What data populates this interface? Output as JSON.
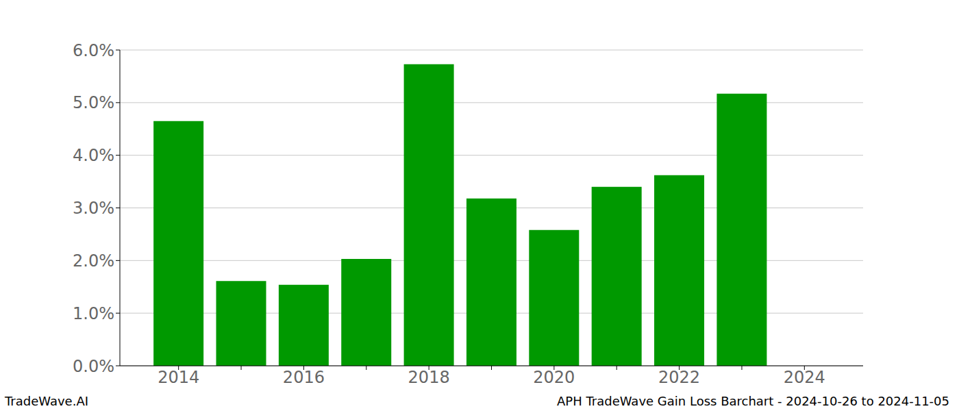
{
  "chart_data": {
    "type": "bar",
    "title": "APH TradeWave Gain Loss Barchart - 2024-10-26 to 2024-11-05",
    "annotations": [
      "TradeWave.AI"
    ],
    "categories": [
      "2014",
      null,
      "2016",
      null,
      "2018",
      null,
      "2020",
      null,
      "2022",
      null,
      "2024"
    ],
    "values": [
      4.65,
      1.61,
      1.54,
      2.03,
      5.73,
      3.18,
      2.58,
      3.4,
      3.62,
      5.17,
      null
    ],
    "color": "#009900",
    "ylim": [
      0,
      6
    ],
    "yticks": [
      {
        "value": 0,
        "label": "0.0%"
      },
      {
        "value": 1,
        "label": "1.0%"
      },
      {
        "value": 2,
        "label": "2.0%"
      },
      {
        "value": 3,
        "label": "3.0%"
      },
      {
        "value": 4,
        "label": "4.0%"
      },
      {
        "value": 5,
        "label": "5.0%"
      },
      {
        "value": 6,
        "label": "6.0%"
      }
    ],
    "grid": true
  }
}
